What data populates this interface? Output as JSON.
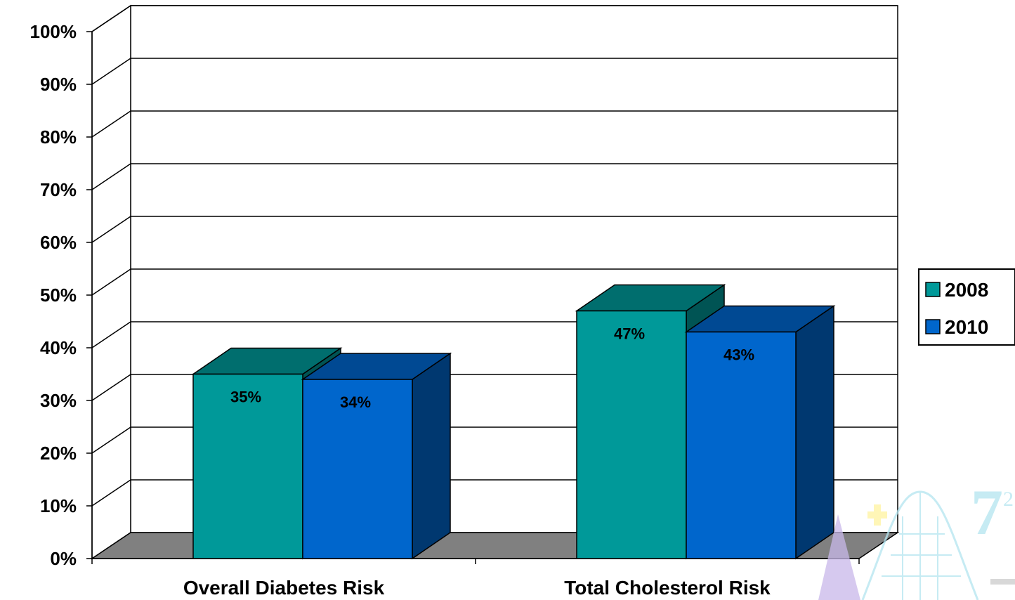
{
  "chart_data": {
    "type": "bar",
    "categories": [
      "Overall Diabetes Risk",
      "Total Cholesterol Risk"
    ],
    "series": [
      {
        "name": "2008",
        "values": [
          35,
          47
        ],
        "labels": [
          "35%",
          "47%"
        ],
        "color": "#009999"
      },
      {
        "name": "2010",
        "values": [
          34,
          43
        ],
        "labels": [
          "34%",
          "43%"
        ],
        "color": "#0066CC"
      }
    ],
    "ylim": [
      0,
      100
    ],
    "yticks": [
      "0%",
      "10%",
      "20%",
      "30%",
      "40%",
      "50%",
      "60%",
      "70%",
      "80%",
      "90%",
      "100%"
    ],
    "grid": true,
    "three_d": true,
    "legend_position": "right",
    "floor_color": "#808080"
  },
  "watermark": {
    "accent_color": "#ff9999",
    "glyph_color": "#b3e5f0"
  }
}
